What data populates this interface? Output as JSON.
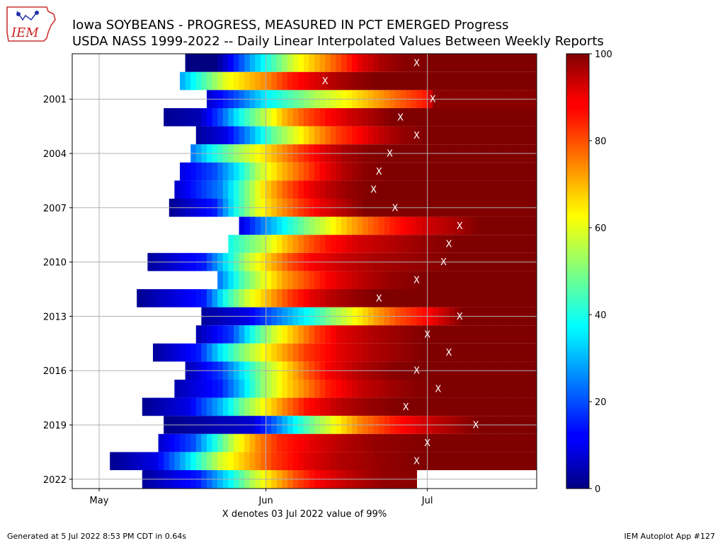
{
  "header": {
    "title_line1": "Iowa SOYBEANS - PROGRESS, MEASURED IN PCT EMERGED Progress",
    "title_line2": "USDA NASS 1999-2022 -- Daily Linear Interpolated Values Between Weekly Reports",
    "logo_text": "IEM"
  },
  "footer": {
    "generated": "Generated at 5 Jul 2022 8:53 PM CDT in 0.64s",
    "app": "IEM Autoplot App #127"
  },
  "chart_data": {
    "type": "heatmap",
    "title": "Iowa SOYBEANS - PROGRESS, MEASURED IN PCT EMERGED Progress",
    "subtitle": "USDA NASS 1999-2022 -- Daily Linear Interpolated Values Between Weekly Reports",
    "xlabel": "X denotes 03 Jul 2022 value of 99%",
    "ylabel": "",
    "x_ticks": [
      "May",
      "Jun",
      "Jul"
    ],
    "y_ticks": [
      "2001",
      "2004",
      "2007",
      "2010",
      "2013",
      "2016",
      "2019",
      "2022"
    ],
    "colorbar": {
      "ticks": [
        0,
        20,
        40,
        60,
        80,
        100
      ],
      "range": [
        0,
        100
      ],
      "colormap": "jet"
    },
    "grid": true,
    "marker_symbol": "X",
    "years": [
      1999,
      2000,
      2001,
      2002,
      2003,
      2004,
      2005,
      2006,
      2007,
      2008,
      2009,
      2010,
      2011,
      2012,
      2013,
      2014,
      2015,
      2016,
      2017,
      2018,
      2019,
      2020,
      2021,
      2022
    ],
    "series": [
      {
        "year": 1999,
        "start": "2022-05-17",
        "x_marker": "2022-06-29",
        "values": [
          [
            5,
            0
          ],
          [
            8,
            12
          ],
          [
            12,
            30
          ],
          [
            16,
            45
          ],
          [
            20,
            60
          ],
          [
            24,
            70
          ],
          [
            28,
            80
          ],
          [
            32,
            90
          ],
          [
            36,
            96
          ],
          [
            40,
            99
          ],
          [
            44,
            100
          ]
        ]
      },
      {
        "year": 2000,
        "start": "2022-05-16",
        "x_marker": "2022-06-12",
        "values": [
          [
            0,
            30
          ],
          [
            4,
            45
          ],
          [
            8,
            60
          ],
          [
            12,
            68
          ],
          [
            16,
            75
          ],
          [
            20,
            85
          ],
          [
            24,
            90
          ],
          [
            28,
            95
          ],
          [
            32,
            98
          ],
          [
            36,
            100
          ]
        ]
      },
      {
        "year": 2001,
        "start": "2022-05-21",
        "x_marker": "2022-07-02",
        "values": [
          [
            0,
            8
          ],
          [
            5,
            20
          ],
          [
            10,
            35
          ],
          [
            15,
            45
          ],
          [
            20,
            55
          ],
          [
            25,
            62
          ],
          [
            30,
            70
          ],
          [
            35,
            78
          ],
          [
            40,
            85
          ],
          [
            42,
            99
          ]
        ]
      },
      {
        "year": 2002,
        "start": "2022-05-13",
        "x_marker": "2022-06-26",
        "values": [
          [
            0,
            2
          ],
          [
            6,
            5
          ],
          [
            10,
            20
          ],
          [
            14,
            40
          ],
          [
            18,
            55
          ],
          [
            22,
            70
          ],
          [
            26,
            80
          ],
          [
            30,
            87
          ],
          [
            34,
            92
          ],
          [
            38,
            96
          ],
          [
            42,
            100
          ]
        ]
      },
      {
        "year": 2003,
        "start": "2022-05-19",
        "x_marker": "2022-06-29",
        "values": [
          [
            0,
            3
          ],
          [
            5,
            10
          ],
          [
            10,
            30
          ],
          [
            14,
            48
          ],
          [
            18,
            60
          ],
          [
            22,
            72
          ],
          [
            26,
            82
          ],
          [
            30,
            88
          ],
          [
            34,
            94
          ],
          [
            38,
            98
          ],
          [
            42,
            100
          ]
        ]
      },
      {
        "year": 2004,
        "start": "2022-05-18",
        "x_marker": "2022-06-24",
        "values": [
          [
            0,
            25
          ],
          [
            4,
            40
          ],
          [
            8,
            52
          ],
          [
            12,
            62
          ],
          [
            16,
            72
          ],
          [
            20,
            82
          ],
          [
            24,
            90
          ],
          [
            28,
            96
          ],
          [
            32,
            99
          ],
          [
            36,
            100
          ]
        ]
      },
      {
        "year": 2005,
        "start": "2022-05-16",
        "x_marker": "2022-06-22",
        "values": [
          [
            0,
            10
          ],
          [
            6,
            20
          ],
          [
            10,
            35
          ],
          [
            14,
            55
          ],
          [
            18,
            68
          ],
          [
            22,
            78
          ],
          [
            26,
            88
          ],
          [
            30,
            95
          ],
          [
            34,
            99
          ],
          [
            38,
            100
          ]
        ]
      },
      {
        "year": 2006,
        "start": "2022-05-15",
        "x_marker": "2022-06-21",
        "values": [
          [
            0,
            8
          ],
          [
            8,
            25
          ],
          [
            12,
            45
          ],
          [
            16,
            65
          ],
          [
            20,
            78
          ],
          [
            24,
            88
          ],
          [
            28,
            94
          ],
          [
            32,
            98
          ],
          [
            36,
            100
          ]
        ]
      },
      {
        "year": 2007,
        "start": "2022-05-14",
        "x_marker": "2022-06-25",
        "values": [
          [
            0,
            2
          ],
          [
            8,
            15
          ],
          [
            12,
            40
          ],
          [
            16,
            60
          ],
          [
            20,
            72
          ],
          [
            24,
            82
          ],
          [
            28,
            90
          ],
          [
            32,
            95
          ],
          [
            36,
            100
          ]
        ]
      },
      {
        "year": 2008,
        "start": "2022-05-27",
        "x_marker": "2022-07-07",
        "values": [
          [
            0,
            10
          ],
          [
            4,
            25
          ],
          [
            8,
            38
          ],
          [
            12,
            50
          ],
          [
            16,
            60
          ],
          [
            20,
            70
          ],
          [
            24,
            78
          ],
          [
            28,
            85
          ],
          [
            34,
            92
          ],
          [
            40,
            96
          ],
          [
            44,
            100
          ]
        ]
      },
      {
        "year": 2009,
        "start": "2022-05-25",
        "x_marker": "2022-07-05",
        "values": [
          [
            0,
            40
          ],
          [
            6,
            55
          ],
          [
            10,
            68
          ],
          [
            14,
            78
          ],
          [
            18,
            86
          ],
          [
            24,
            92
          ],
          [
            30,
            95
          ],
          [
            36,
            98
          ],
          [
            42,
            100
          ]
        ]
      },
      {
        "year": 2010,
        "start": "2022-05-10",
        "x_marker": "2022-07-04",
        "values": [
          [
            0,
            3
          ],
          [
            10,
            15
          ],
          [
            14,
            35
          ],
          [
            18,
            55
          ],
          [
            22,
            68
          ],
          [
            26,
            80
          ],
          [
            30,
            88
          ],
          [
            36,
            93
          ],
          [
            42,
            96
          ],
          [
            50,
            98
          ],
          [
            56,
            100
          ]
        ]
      },
      {
        "year": 2011,
        "start": "2022-05-23",
        "x_marker": "2022-06-29",
        "values": [
          [
            0,
            25
          ],
          [
            4,
            45
          ],
          [
            8,
            60
          ],
          [
            12,
            72
          ],
          [
            16,
            80
          ],
          [
            20,
            88
          ],
          [
            26,
            94
          ],
          [
            32,
            98
          ],
          [
            38,
            100
          ]
        ]
      },
      {
        "year": 2012,
        "start": "2022-05-08",
        "x_marker": "2022-06-22",
        "values": [
          [
            0,
            2
          ],
          [
            12,
            15
          ],
          [
            16,
            40
          ],
          [
            20,
            58
          ],
          [
            24,
            70
          ],
          [
            28,
            82
          ],
          [
            32,
            90
          ],
          [
            36,
            95
          ],
          [
            40,
            98
          ],
          [
            44,
            100
          ]
        ]
      },
      {
        "year": 2013,
        "start": "2022-05-20",
        "x_marker": "2022-07-07",
        "values": [
          [
            0,
            3
          ],
          [
            8,
            10
          ],
          [
            14,
            25
          ],
          [
            20,
            40
          ],
          [
            24,
            52
          ],
          [
            28,
            62
          ],
          [
            32,
            72
          ],
          [
            36,
            80
          ],
          [
            42,
            88
          ],
          [
            48,
            100
          ]
        ]
      },
      {
        "year": 2014,
        "start": "2022-05-19",
        "x_marker": "2022-07-01",
        "values": [
          [
            0,
            5
          ],
          [
            6,
            18
          ],
          [
            10,
            40
          ],
          [
            14,
            58
          ],
          [
            18,
            70
          ],
          [
            22,
            82
          ],
          [
            26,
            90
          ],
          [
            32,
            95
          ],
          [
            38,
            98
          ],
          [
            42,
            100
          ]
        ]
      },
      {
        "year": 2015,
        "start": "2022-05-11",
        "x_marker": "2022-07-05",
        "values": [
          [
            0,
            3
          ],
          [
            8,
            15
          ],
          [
            12,
            35
          ],
          [
            16,
            50
          ],
          [
            20,
            62
          ],
          [
            24,
            72
          ],
          [
            28,
            82
          ],
          [
            34,
            90
          ],
          [
            40,
            95
          ],
          [
            46,
            98
          ],
          [
            50,
            100
          ]
        ]
      },
      {
        "year": 2016,
        "start": "2022-05-17",
        "x_marker": "2022-06-29",
        "values": [
          [
            0,
            5
          ],
          [
            6,
            18
          ],
          [
            10,
            35
          ],
          [
            14,
            52
          ],
          [
            18,
            65
          ],
          [
            22,
            78
          ],
          [
            26,
            88
          ],
          [
            32,
            95
          ],
          [
            38,
            99
          ],
          [
            42,
            100
          ]
        ]
      },
      {
        "year": 2017,
        "start": "2022-05-15",
        "x_marker": "2022-07-03",
        "values": [
          [
            0,
            5
          ],
          [
            8,
            15
          ],
          [
            12,
            32
          ],
          [
            16,
            52
          ],
          [
            20,
            65
          ],
          [
            24,
            75
          ],
          [
            28,
            85
          ],
          [
            34,
            93
          ],
          [
            40,
            97
          ],
          [
            44,
            99
          ],
          [
            48,
            100
          ]
        ]
      },
      {
        "year": 2018,
        "start": "2022-05-09",
        "x_marker": "2022-06-27",
        "values": [
          [
            0,
            2
          ],
          [
            8,
            10
          ],
          [
            14,
            30
          ],
          [
            18,
            48
          ],
          [
            22,
            62
          ],
          [
            26,
            75
          ],
          [
            30,
            86
          ],
          [
            36,
            94
          ],
          [
            42,
            98
          ],
          [
            48,
            100
          ]
        ]
      },
      {
        "year": 2019,
        "start": "2022-05-13",
        "x_marker": "2022-07-10",
        "values": [
          [
            0,
            1
          ],
          [
            16,
            8
          ],
          [
            20,
            22
          ],
          [
            24,
            38
          ],
          [
            28,
            52
          ],
          [
            32,
            64
          ],
          [
            36,
            75
          ],
          [
            42,
            85
          ],
          [
            48,
            92
          ],
          [
            54,
            97
          ],
          [
            58,
            100
          ]
        ]
      },
      {
        "year": 2020,
        "start": "2022-05-12",
        "x_marker": "2022-07-01",
        "values": [
          [
            0,
            8
          ],
          [
            6,
            20
          ],
          [
            10,
            40
          ],
          [
            14,
            60
          ],
          [
            18,
            74
          ],
          [
            22,
            84
          ],
          [
            28,
            90
          ],
          [
            34,
            95
          ],
          [
            40,
            98
          ],
          [
            50,
            100
          ]
        ]
      },
      {
        "year": 2021,
        "start": "2022-05-03",
        "x_marker": "2022-06-29",
        "values": [
          [
            0,
            2
          ],
          [
            8,
            10
          ],
          [
            12,
            25
          ],
          [
            16,
            42
          ],
          [
            20,
            58
          ],
          [
            26,
            72
          ],
          [
            30,
            82
          ],
          [
            36,
            90
          ],
          [
            42,
            95
          ],
          [
            50,
            98
          ],
          [
            57,
            100
          ]
        ]
      },
      {
        "year": 2022,
        "start": "2022-05-09",
        "x_marker": "",
        "values": [
          [
            0,
            3
          ],
          [
            10,
            15
          ],
          [
            16,
            38
          ],
          [
            20,
            55
          ],
          [
            24,
            68
          ],
          [
            28,
            80
          ],
          [
            32,
            88
          ],
          [
            38,
            94
          ],
          [
            44,
            98
          ],
          [
            50,
            99
          ]
        ]
      }
    ]
  }
}
